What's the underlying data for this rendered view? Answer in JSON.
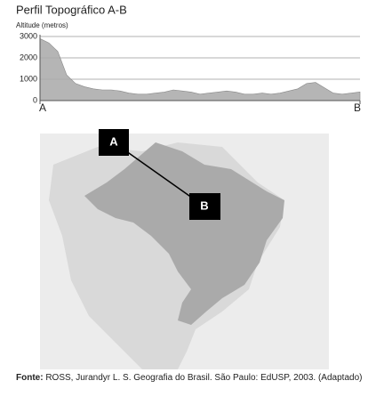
{
  "chart_data": {
    "type": "area",
    "title": "Perfil Topográfico A-B",
    "y_label": "Altitude (metros)",
    "categories": [
      "A",
      null,
      null,
      null,
      null,
      null,
      null,
      null,
      null,
      null,
      null,
      null,
      null,
      null,
      null,
      null,
      null,
      null,
      null,
      null,
      null,
      null,
      null,
      null,
      null,
      null,
      null,
      null,
      null,
      null,
      null,
      null,
      null,
      null,
      null,
      null,
      "B"
    ],
    "values": [
      2900,
      2700,
      2300,
      1200,
      800,
      650,
      550,
      500,
      500,
      450,
      350,
      300,
      300,
      350,
      400,
      500,
      450,
      400,
      300,
      350,
      400,
      450,
      400,
      300,
      300,
      350,
      300,
      350,
      450,
      550,
      800,
      850,
      600,
      350,
      300,
      350,
      400
    ],
    "color": "#a8a8a8",
    "ylim": [
      0,
      3000
    ],
    "yticks": [
      0,
      1000,
      2000,
      3000
    ],
    "grid": true
  },
  "map": {
    "point_a": "A",
    "point_b": "B"
  },
  "caption": {
    "label": "Fonte:",
    "text": "ROSS, Jurandyr L. S. Geografia do Brasil. São Paulo: EdUSP, 2003. (Adaptado)"
  }
}
